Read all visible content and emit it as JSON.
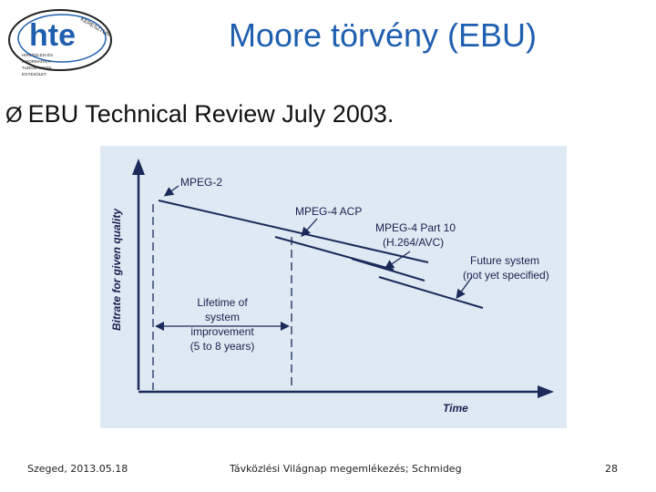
{
  "slide": {
    "title": "Moore törvény (EBU)",
    "bullet_marker": "Ø",
    "bullet_text": "EBU Technical Review July 2003."
  },
  "logo": {
    "letters": "hte",
    "arc_text": "KERESZTÚR",
    "lines": [
      "HÍRKÖZLÉSI ÉS",
      "INFORMATIKAI",
      "TUDOMÁNYOS",
      "EGYESÜLET"
    ]
  },
  "diagram": {
    "y_axis_label": "Bitrate for given quality",
    "x_axis_label": "Time",
    "labels": {
      "mpeg2": "MPEG-2",
      "mpeg4acp": "MPEG-4 ACP",
      "mpeg4p10_line1": "MPEG-4 Part 10",
      "mpeg4p10_line2": "(H.264/AVC)",
      "future_line1": "Future system",
      "future_line2": "(not yet specified)",
      "lifetime_line1": "Lifetime of",
      "lifetime_line2": "system",
      "lifetime_line3": "improvement",
      "lifetime_line4": "(5 to 8 years)"
    },
    "colors": {
      "background": "#dfe9f3",
      "lines": "#1a2a5a",
      "text": "#1a2050"
    }
  },
  "footer": {
    "left": "Szeged, 2013.05.18",
    "center": "Távközlési Világnap megemlékezés; Schmideg",
    "page": "28"
  }
}
